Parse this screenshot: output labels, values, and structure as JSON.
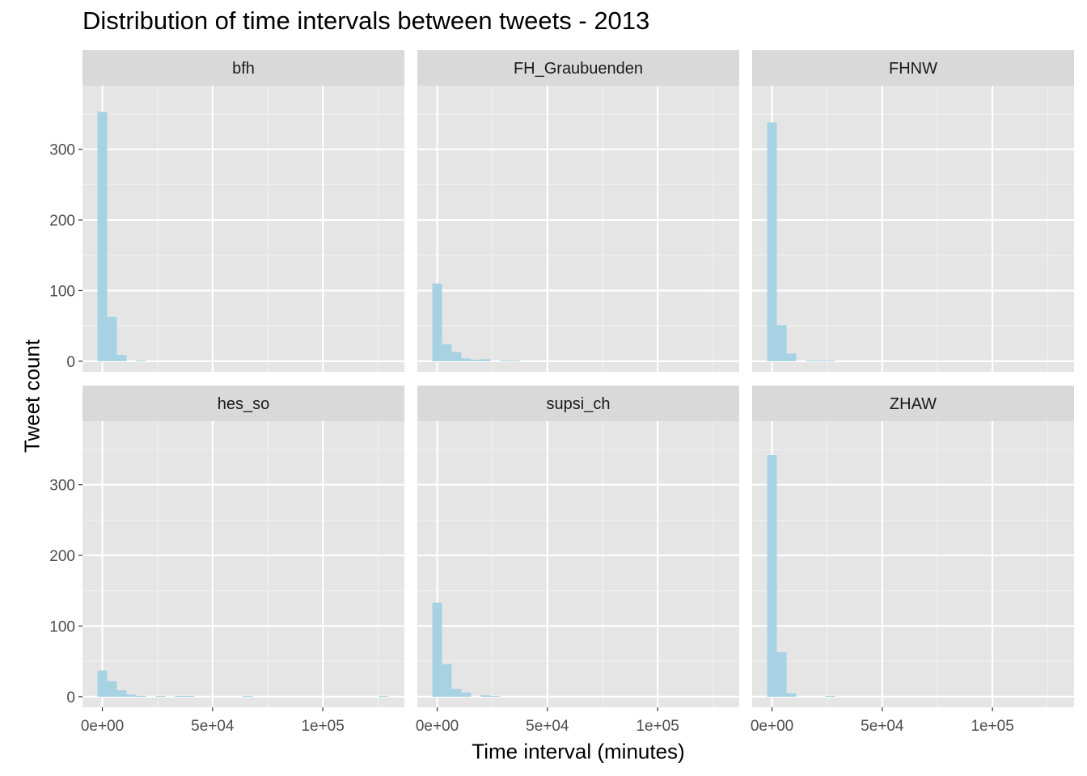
{
  "chart_data": {
    "type": "bar",
    "title": "Distribution of time intervals between tweets - 2013",
    "xlabel": "Time interval (minutes)",
    "ylabel": "Tweet count",
    "bin_width": 4400,
    "xlim": [
      -9000,
      137000
    ],
    "ylim": [
      -15,
      390
    ],
    "x_ticks": [
      0,
      50000,
      100000
    ],
    "x_tick_labels": [
      "0e+00",
      "5e+04",
      "1e+05"
    ],
    "y_ticks": [
      0,
      100,
      200,
      300
    ],
    "y_tick_labels": [
      "0",
      "100",
      "200",
      "300"
    ],
    "grid": true,
    "bar_color": "#a6d2e3",
    "panel_bg": "#e5e5e5",
    "strip_bg": "#d9d9d9",
    "facets": [
      {
        "name": "bfh",
        "bins": [
          {
            "x": 0,
            "y": 353
          },
          {
            "x": 4400,
            "y": 63
          },
          {
            "x": 8800,
            "y": 9
          },
          {
            "x": 17600,
            "y": 1
          }
        ]
      },
      {
        "name": "FH_Graubuenden",
        "bins": [
          {
            "x": 0,
            "y": 110
          },
          {
            "x": 4400,
            "y": 24
          },
          {
            "x": 8800,
            "y": 13
          },
          {
            "x": 13200,
            "y": 4
          },
          {
            "x": 17600,
            "y": 2
          },
          {
            "x": 22000,
            "y": 3
          },
          {
            "x": 30800,
            "y": 1
          },
          {
            "x": 35200,
            "y": 1
          }
        ]
      },
      {
        "name": "FHNW",
        "bins": [
          {
            "x": 0,
            "y": 338
          },
          {
            "x": 4400,
            "y": 51
          },
          {
            "x": 8800,
            "y": 11
          },
          {
            "x": 17600,
            "y": 1
          },
          {
            "x": 22000,
            "y": 1
          },
          {
            "x": 26400,
            "y": 1
          }
        ]
      },
      {
        "name": "hes_so",
        "bins": [
          {
            "x": 0,
            "y": 37
          },
          {
            "x": 4400,
            "y": 22
          },
          {
            "x": 8800,
            "y": 9
          },
          {
            "x": 13200,
            "y": 3
          },
          {
            "x": 17600,
            "y": 1
          },
          {
            "x": 26400,
            "y": 1
          },
          {
            "x": 35200,
            "y": 1
          },
          {
            "x": 39600,
            "y": 1
          },
          {
            "x": 66000,
            "y": 1
          },
          {
            "x": 127600,
            "y": 1
          }
        ]
      },
      {
        "name": "supsi_ch",
        "bins": [
          {
            "x": 0,
            "y": 133
          },
          {
            "x": 4400,
            "y": 46
          },
          {
            "x": 8800,
            "y": 11
          },
          {
            "x": 13200,
            "y": 6
          },
          {
            "x": 22000,
            "y": 2
          },
          {
            "x": 26400,
            "y": 1
          }
        ]
      },
      {
        "name": "ZHAW",
        "bins": [
          {
            "x": 0,
            "y": 342
          },
          {
            "x": 4400,
            "y": 63
          },
          {
            "x": 8800,
            "y": 5
          },
          {
            "x": 26400,
            "y": 1
          }
        ]
      }
    ]
  }
}
